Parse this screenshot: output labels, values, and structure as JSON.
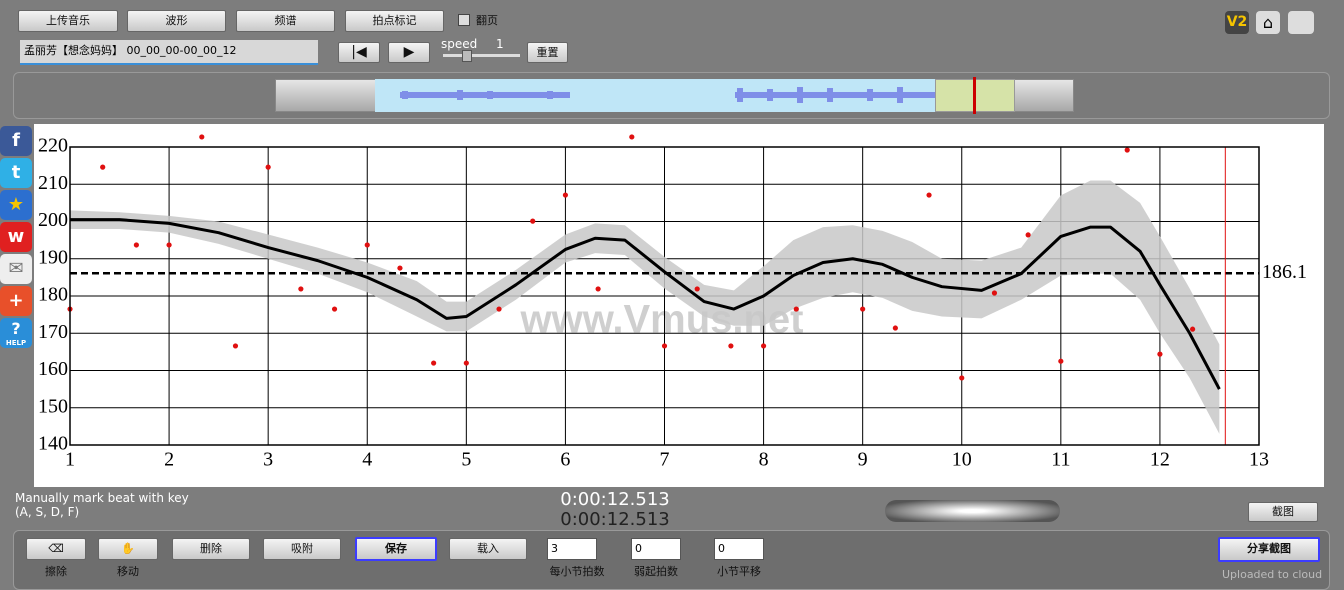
{
  "toolbar": {
    "buttons": [
      "上传音乐",
      "波形",
      "频谱",
      "拍点标记"
    ],
    "page_flip": "翻页",
    "song": "孟丽芳【想念妈妈】 00_00_00-00_00_12",
    "speed_label": "speed",
    "speed_value": "1",
    "reset": "重置",
    "version": "V2"
  },
  "share_icons": {
    "help": "HELP"
  },
  "chart_data": {
    "type": "scatter",
    "watermark": "www.Vmus.net",
    "xlim": [
      1,
      13
    ],
    "ylim": [
      140,
      220
    ],
    "xticks": [
      1,
      2,
      3,
      4,
      5,
      6,
      7,
      8,
      9,
      10,
      11,
      12,
      13
    ],
    "yticks": [
      140,
      150,
      160,
      170,
      180,
      190,
      200,
      210,
      220
    ],
    "grid": true,
    "points": {
      "color": "#e01010",
      "x": [
        1,
        1.33,
        1.67,
        2,
        2.33,
        2.67,
        3,
        3.33,
        3.67,
        4,
        4.33,
        4.67,
        5,
        5.33,
        5.67,
        6,
        6.33,
        6.67,
        7,
        7.33,
        7.67,
        8,
        8.33,
        9,
        9.33,
        9.67,
        10,
        10.33,
        10.67,
        11,
        11.67,
        12,
        12.33
      ],
      "y": [
        176.5,
        214.6,
        193.7,
        193.7,
        222.7,
        166.6,
        214.6,
        181.9,
        176.5,
        193.7,
        187.5,
        162,
        162,
        176.5,
        200.1,
        207.1,
        181.9,
        222.7,
        166.6,
        181.9,
        166.6,
        166.6,
        176.5,
        176.5,
        171.4,
        207.1,
        158,
        180.8,
        196.4,
        162.5,
        219.2,
        164.4,
        171.1
      ]
    },
    "trend": {
      "color": "#000000",
      "band_color": "#c8c8c8",
      "x": [
        1,
        1.5,
        2,
        2.5,
        3,
        3.5,
        4,
        4.5,
        4.8,
        5,
        5.5,
        6,
        6.3,
        6.6,
        7,
        7.4,
        7.7,
        8,
        8.3,
        8.6,
        8.9,
        9.2,
        9.5,
        9.8,
        10.2,
        10.6,
        11,
        11.3,
        11.5,
        11.8,
        12,
        12.3,
        12.6
      ],
      "values": [
        200.5,
        200.5,
        199.5,
        197,
        193,
        189.5,
        185,
        179,
        174,
        174.5,
        183,
        192.5,
        195.5,
        195,
        186.5,
        178.5,
        176.5,
        180,
        185.5,
        189,
        190,
        188.5,
        185,
        182.5,
        181.5,
        186,
        196,
        198.5,
        198.5,
        192,
        183,
        170,
        155
      ],
      "upper": [
        203,
        202.5,
        201.5,
        200,
        196.5,
        193,
        189,
        184,
        178.5,
        178.5,
        187,
        196.5,
        199.5,
        199,
        190.5,
        183,
        181.5,
        188,
        195,
        198.5,
        199,
        197.5,
        194.5,
        190,
        189.5,
        193,
        207,
        211,
        211,
        205,
        196,
        182,
        167
      ],
      "lower": [
        198,
        198,
        197,
        194,
        190,
        186,
        181,
        174.5,
        170.5,
        170.5,
        179,
        189,
        191.5,
        191,
        182,
        174.5,
        172,
        172,
        176.5,
        179.5,
        181,
        179.5,
        176,
        174.5,
        174,
        179,
        185.5,
        186,
        186,
        179,
        170,
        158,
        143
      ]
    },
    "mean": 186.1,
    "cursor_x": 12.66
  },
  "footer": {
    "hint": [
      "Manually mark beat with key",
      "(A, S, D, F)"
    ],
    "times": [
      "0:00:12.513",
      "0:00:12.513"
    ],
    "screenshot": "截图",
    "tools": [
      "擦除",
      "移动"
    ],
    "actions": [
      "删除",
      "吸附",
      "保存",
      "载入"
    ],
    "spinners": [
      {
        "value": 3,
        "label": "每小节拍数"
      },
      {
        "value": 0,
        "label": "弱起拍数"
      },
      {
        "value": 0,
        "label": "小节平移"
      }
    ],
    "share": "分享截图",
    "status": "Uploaded to cloud"
  }
}
